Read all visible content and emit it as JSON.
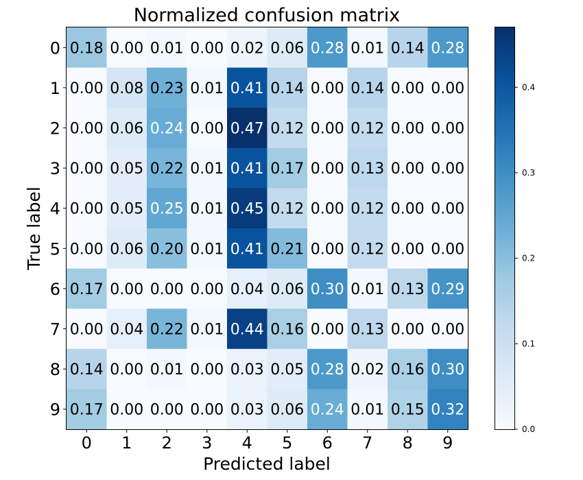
{
  "chart_data": {
    "type": "heatmap",
    "title": "Normalized confusion matrix",
    "xlabel": "Predicted label",
    "ylabel": "True label",
    "x_ticks": [
      "0",
      "1",
      "2",
      "3",
      "4",
      "5",
      "6",
      "7",
      "8",
      "9"
    ],
    "y_ticks": [
      "0",
      "1",
      "2",
      "3",
      "4",
      "5",
      "6",
      "7",
      "8",
      "9"
    ],
    "matrix": [
      [
        0.18,
        0.0,
        0.01,
        0.0,
        0.02,
        0.06,
        0.28,
        0.01,
        0.14,
        0.28
      ],
      [
        0.0,
        0.08,
        0.23,
        0.01,
        0.41,
        0.14,
        0.0,
        0.14,
        0.0,
        0.0
      ],
      [
        0.0,
        0.06,
        0.24,
        0.0,
        0.47,
        0.12,
        0.0,
        0.12,
        0.0,
        0.0
      ],
      [
        0.0,
        0.05,
        0.22,
        0.01,
        0.41,
        0.17,
        0.0,
        0.13,
        0.0,
        0.0
      ],
      [
        0.0,
        0.05,
        0.25,
        0.01,
        0.45,
        0.12,
        0.0,
        0.12,
        0.0,
        0.0
      ],
      [
        0.0,
        0.06,
        0.2,
        0.01,
        0.41,
        0.21,
        0.0,
        0.12,
        0.0,
        0.0
      ],
      [
        0.17,
        0.0,
        0.0,
        0.0,
        0.04,
        0.06,
        0.3,
        0.01,
        0.13,
        0.29
      ],
      [
        0.0,
        0.04,
        0.22,
        0.01,
        0.44,
        0.16,
        0.0,
        0.13,
        0.0,
        0.0
      ],
      [
        0.14,
        0.0,
        0.01,
        0.0,
        0.03,
        0.05,
        0.28,
        0.02,
        0.16,
        0.3
      ],
      [
        0.17,
        0.0,
        0.0,
        0.0,
        0.03,
        0.06,
        0.24,
        0.01,
        0.15,
        0.32
      ]
    ],
    "colormap": "Blues",
    "vmin": 0.0,
    "vmax": 0.47,
    "colorbar_ticks": [
      "0.0",
      "0.1",
      "0.2",
      "0.3",
      "0.4"
    ],
    "colorbar_tick_values": [
      0.0,
      0.1,
      0.2,
      0.3,
      0.4
    ],
    "label_threshold": 0.235,
    "text_color_dark": "#000000",
    "text_color_light": "#ffffff"
  }
}
